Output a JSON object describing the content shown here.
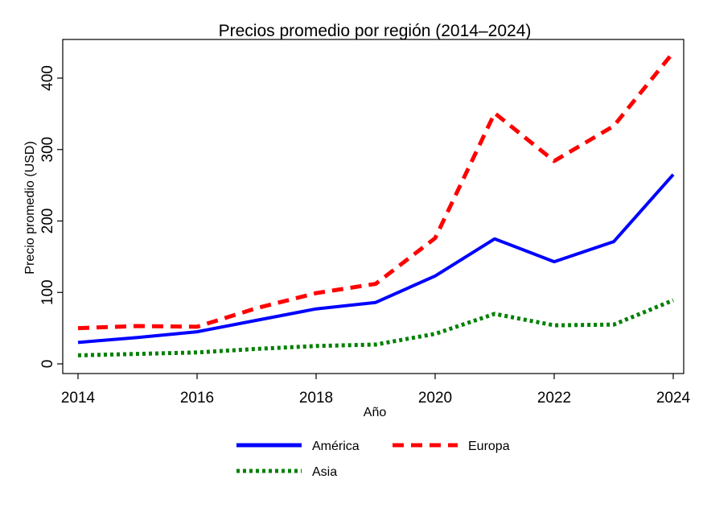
{
  "chart_data": {
    "type": "line",
    "title": "Precios promedio por región (2014–2024)",
    "xlabel": "Año",
    "ylabel": "Precio promedio (USD)",
    "x": [
      2014,
      2015,
      2016,
      2017,
      2018,
      2019,
      2020,
      2021,
      2022,
      2023,
      2024
    ],
    "xticks": [
      2014,
      2016,
      2018,
      2020,
      2022,
      2024
    ],
    "yticks": [
      0,
      100,
      200,
      300,
      400
    ],
    "xlim": [
      2014,
      2024
    ],
    "ylim": [
      -13,
      442
    ],
    "grid": false,
    "legend_position": "bottom",
    "series": [
      {
        "name": "América",
        "color": "#0000ff",
        "style": "solid",
        "values": [
          30,
          37,
          45,
          61,
          77,
          86,
          123,
          175,
          143,
          171,
          265
        ]
      },
      {
        "name": "Europa",
        "color": "#ff0000",
        "style": "dashed",
        "values": [
          50,
          53,
          52,
          78,
          99,
          112,
          176,
          351,
          284,
          333,
          436
        ]
      },
      {
        "name": "Asia",
        "color": "#008000",
        "style": "dotted",
        "values": [
          12,
          14,
          16,
          21,
          25,
          27,
          42,
          70,
          54,
          55,
          89
        ]
      }
    ]
  }
}
